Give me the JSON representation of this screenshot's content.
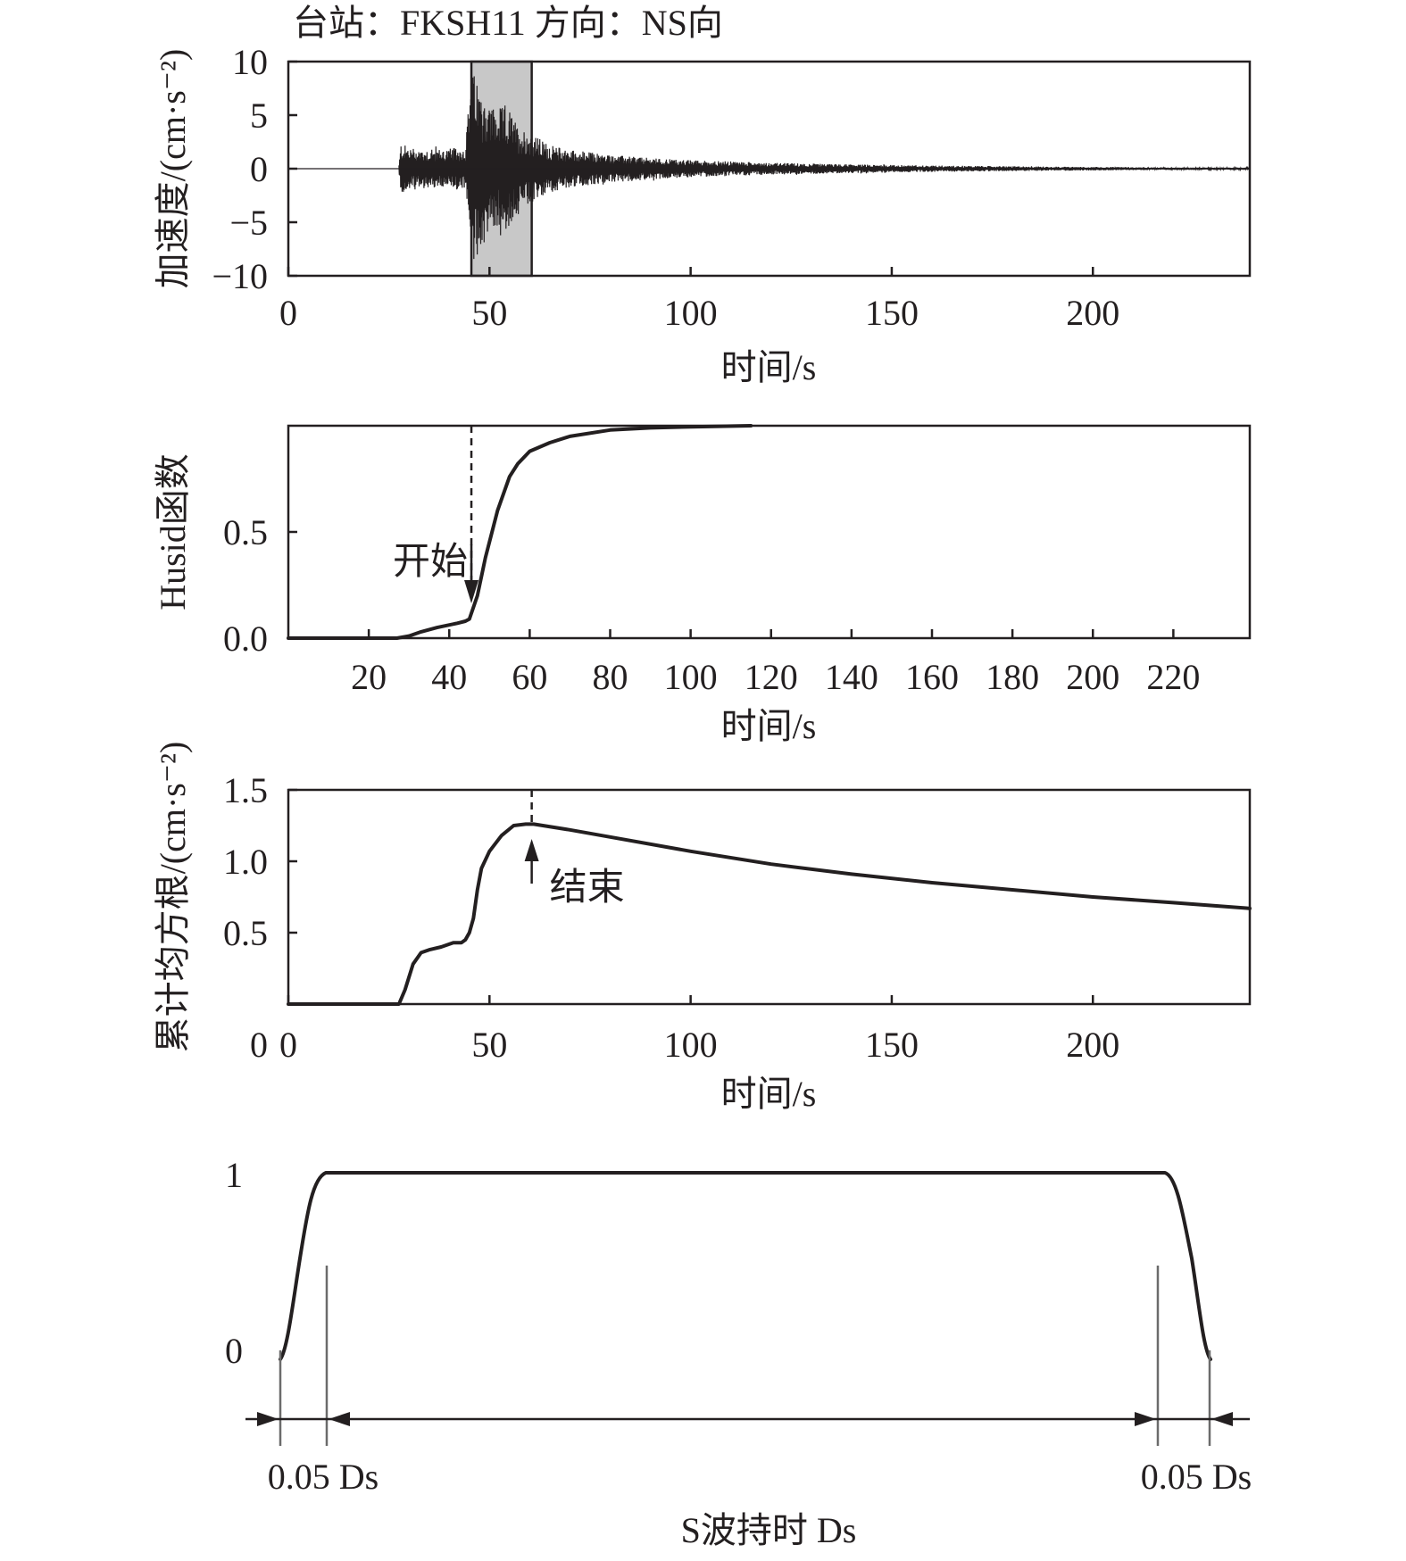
{
  "chart_data": [
    {
      "type": "line",
      "panel": "acceleration",
      "title": "台站：FKSH11  方向：NS向",
      "xlabel": "时间/s",
      "ylabel": "加速度/(cm·s⁻²)",
      "xlim": [
        0,
        239
      ],
      "ylim": [
        -10,
        10
      ],
      "xticks": [
        0,
        50,
        100,
        150,
        200
      ],
      "yticks": [
        10,
        5,
        0,
        -5,
        -10
      ],
      "ytick_labels": [
        "10",
        "5",
        "0",
        "−5",
        "−10"
      ],
      "highlight_interval": [
        45.5,
        60.5
      ],
      "highlight_color": "#c8c8c8",
      "signal_onset": 27.5,
      "envelope": {
        "t": [
          0,
          27.4,
          28,
          30,
          35,
          40,
          44,
          45,
          46,
          47,
          48,
          50,
          52,
          54,
          55,
          57,
          60,
          65,
          70,
          80,
          90,
          100,
          120,
          140,
          160,
          180,
          200,
          220,
          239
        ],
        "amp": [
          0,
          0,
          2.4,
          2.0,
          1.8,
          1.9,
          2.0,
          7.0,
          9.0,
          8.2,
          7.0,
          6.0,
          5.5,
          6.0,
          5.5,
          4.0,
          3.4,
          2.2,
          1.8,
          1.3,
          1.0,
          0.8,
          0.55,
          0.4,
          0.3,
          0.22,
          0.16,
          0.12,
          0.1
        ]
      }
    },
    {
      "type": "line",
      "panel": "husid",
      "xlabel": "时间/s",
      "ylabel": "Husid函数",
      "xlim": [
        0,
        239
      ],
      "ylim": [
        0,
        1
      ],
      "xticks": [
        20,
        40,
        60,
        80,
        100,
        120,
        140,
        160,
        180,
        200,
        220
      ],
      "yticks": [
        0.0,
        0.5
      ],
      "ytick_labels": [
        "0.0",
        "0.5"
      ],
      "x": [
        0,
        27,
        30,
        33,
        37,
        42,
        44,
        45,
        47,
        49,
        52,
        55,
        57,
        60,
        65,
        70,
        80,
        90,
        100,
        115
      ],
      "y": [
        0,
        0,
        0.01,
        0.03,
        0.05,
        0.07,
        0.08,
        0.09,
        0.2,
        0.38,
        0.6,
        0.76,
        0.82,
        0.88,
        0.92,
        0.95,
        0.98,
        0.99,
        0.995,
        1.0
      ],
      "marker_x": 45.5,
      "annotation": "开始"
    },
    {
      "type": "line",
      "panel": "cumulative_rms",
      "xlabel": "时间/s",
      "ylabel": "累计均方根/(cm·s⁻²)",
      "xlim": [
        0,
        239
      ],
      "ylim": [
        0,
        1.5
      ],
      "xticks": [
        0,
        50,
        100,
        150,
        200
      ],
      "yticks": [
        1.5,
        1.0,
        0.5
      ],
      "ytick_labels": [
        "1.5",
        "1.0",
        "0.5"
      ],
      "x": [
        0,
        26,
        27.5,
        29,
        31,
        33,
        35,
        38,
        41,
        43,
        44,
        45,
        46,
        47,
        48,
        50,
        53,
        56,
        59,
        61,
        70,
        80,
        100,
        120,
        140,
        160,
        180,
        200,
        220,
        239
      ],
      "y": [
        0,
        0,
        0,
        0.1,
        0.28,
        0.36,
        0.38,
        0.4,
        0.43,
        0.43,
        0.45,
        0.5,
        0.6,
        0.8,
        0.95,
        1.07,
        1.18,
        1.25,
        1.26,
        1.26,
        1.22,
        1.17,
        1.07,
        0.98,
        0.91,
        0.85,
        0.8,
        0.75,
        0.71,
        0.67
      ],
      "marker_x": 60.5,
      "annotation": "结束"
    },
    {
      "type": "line",
      "panel": "window",
      "xlabel": "S波持时 Ds",
      "yticks": [
        1,
        0
      ],
      "ytick_labels": [
        "1",
        "0"
      ],
      "taper_fraction": 0.05,
      "taper_labels": [
        "0.05 Ds",
        "0.05 Ds"
      ]
    }
  ]
}
